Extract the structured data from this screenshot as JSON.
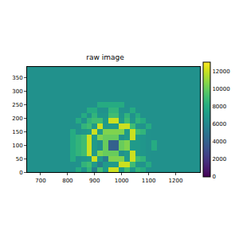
{
  "chart_data": {
    "type": "heatmap",
    "title": "raw image",
    "color": "viridis",
    "x": [
      660,
      680,
      700,
      720,
      740,
      760,
      780,
      800,
      820,
      840,
      860,
      880,
      900,
      920,
      940,
      960,
      980,
      1000,
      1020,
      1040,
      1060,
      1080,
      1100,
      1120,
      1140,
      1160,
      1180,
      1200,
      1220,
      1240,
      1260,
      1280
    ],
    "y": [
      10,
      30,
      50,
      70,
      90,
      110,
      130,
      150,
      170,
      190,
      210,
      230,
      250,
      270,
      290,
      310,
      330,
      350,
      370,
      390
    ],
    "z": [
      [
        6500,
        6500,
        6500,
        6500,
        6500,
        6500,
        6500,
        6500,
        6500,
        8000,
        6600,
        8500,
        5500,
        9000,
        7000,
        12000,
        12000,
        7000,
        9000,
        6800,
        8500,
        8000,
        6500,
        6500,
        6500,
        6500,
        6500,
        6500,
        6500,
        6500,
        6500,
        6500
      ],
      [
        6500,
        6500,
        6500,
        6500,
        6500,
        6500,
        6500,
        6500,
        6500,
        6600,
        8500,
        9000,
        7000,
        5500,
        7000,
        7000,
        7000,
        12000,
        12000,
        9000,
        6800,
        6600,
        8000,
        6500,
        6500,
        6500,
        6500,
        6500,
        6500,
        6500,
        6500,
        6500
      ],
      [
        6500,
        6500,
        6500,
        6500,
        6500,
        6500,
        6500,
        6500,
        8000,
        6600,
        6800,
        7000,
        12000,
        7000,
        5500,
        10500,
        10500,
        10500,
        7000,
        12000,
        9000,
        8500,
        6600,
        6500,
        6500,
        6500,
        6500,
        6500,
        6500,
        6500,
        6500,
        6500
      ],
      [
        6500,
        6500,
        6500,
        6500,
        6500,
        6500,
        6500,
        6500,
        8000,
        8500,
        9000,
        12000,
        7000,
        10500,
        10000,
        10000,
        10000,
        6500,
        7000,
        12000,
        7000,
        6800,
        6600,
        6500,
        6500,
        6500,
        6500,
        6500,
        6500,
        6500,
        6500,
        6500
      ],
      [
        6500,
        6500,
        6500,
        6500,
        6500,
        6500,
        6500,
        6500,
        8000,
        8500,
        9000,
        12000,
        7000,
        6500,
        10000,
        4000,
        4000,
        10000,
        10500,
        7000,
        7000,
        6800,
        6600,
        8000,
        6500,
        6500,
        6500,
        6500,
        6500,
        6500,
        6500,
        6500
      ],
      [
        6500,
        6500,
        6500,
        6500,
        6500,
        6500,
        6500,
        6500,
        8000,
        8500,
        9000,
        12000,
        7000,
        6500,
        10000,
        4000,
        4000,
        10000,
        10500,
        7000,
        7000,
        6800,
        6600,
        8000,
        6500,
        6500,
        6500,
        6500,
        6500,
        6500,
        6500,
        6500
      ],
      [
        6500,
        6500,
        6500,
        6500,
        6500,
        6500,
        6500,
        6500,
        8000,
        8500,
        9000,
        12000,
        7000,
        10500,
        10000,
        10000,
        10000,
        6500,
        7000,
        12000,
        7000,
        6800,
        6600,
        6500,
        6500,
        6500,
        6500,
        6500,
        6500,
        6500,
        6500,
        6500
      ],
      [
        6500,
        6500,
        6500,
        6500,
        6500,
        6500,
        6500,
        6500,
        8000,
        6600,
        6800,
        7000,
        12000,
        7000,
        10500,
        10500,
        10500,
        10500,
        7000,
        12000,
        9000,
        8500,
        6600,
        6500,
        6500,
        6500,
        6500,
        6500,
        6500,
        6500,
        6500,
        6500
      ],
      [
        6500,
        6500,
        6500,
        6500,
        6500,
        6500,
        6500,
        6500,
        6500,
        6600,
        8500,
        9000,
        7000,
        12000,
        7000,
        7000,
        7000,
        12000,
        12000,
        9000,
        6800,
        6600,
        8000,
        6500,
        6500,
        6500,
        6500,
        6500,
        6500,
        6500,
        6500,
        6500
      ],
      [
        6500,
        6500,
        6500,
        6500,
        6500,
        6500,
        6500,
        6500,
        6500,
        8000,
        6600,
        8500,
        9000,
        9000,
        7000,
        12000,
        12000,
        7000,
        9000,
        6800,
        8500,
        8000,
        6500,
        6500,
        6500,
        6500,
        6500,
        6500,
        6500,
        6500,
        6500,
        6500
      ],
      [
        6500,
        6500,
        6500,
        6500,
        6500,
        6500,
        6500,
        6500,
        6500,
        6500,
        8000,
        6600,
        8500,
        6800,
        6800,
        9000,
        9000,
        6800,
        8500,
        6600,
        8000,
        6500,
        6500,
        6500,
        6500,
        6500,
        6500,
        6500,
        6500,
        6500,
        6500,
        6500
      ],
      [
        6500,
        6500,
        6500,
        6500,
        6500,
        6500,
        6500,
        6500,
        6500,
        6500,
        6500,
        8000,
        8000,
        6600,
        6600,
        8500,
        8500,
        6600,
        6600,
        8000,
        6500,
        6500,
        6500,
        6500,
        6500,
        6500,
        6500,
        6500,
        6500,
        6500,
        6500,
        6500
      ],
      [
        6500,
        6500,
        6500,
        6500,
        6500,
        6500,
        6500,
        6500,
        6500,
        6500,
        6500,
        6500,
        6500,
        8000,
        8000,
        8000,
        8000,
        8000,
        6500,
        6500,
        6500,
        6500,
        6500,
        6500,
        6500,
        6500,
        6500,
        6500,
        6500,
        6500,
        6500,
        6500
      ],
      [
        6500,
        6500,
        6500,
        6500,
        6500,
        6500,
        6500,
        6500,
        6500,
        6500,
        6500,
        6500,
        6500,
        6500,
        6500,
        6500,
        6500,
        6500,
        6500,
        6500,
        6500,
        6500,
        6500,
        6500,
        6500,
        6500,
        6500,
        6500,
        6500,
        6500,
        6500,
        6500
      ],
      [
        6500,
        6500,
        6500,
        6500,
        6500,
        6500,
        6500,
        6500,
        6500,
        6500,
        6500,
        6500,
        6500,
        6500,
        6500,
        6500,
        6500,
        6500,
        6500,
        6500,
        6500,
        6500,
        6500,
        6500,
        6500,
        6500,
        6500,
        6500,
        6500,
        6500,
        6500,
        6500
      ],
      [
        6500,
        6500,
        6500,
        6500,
        6500,
        6500,
        6500,
        6500,
        6500,
        6500,
        6500,
        6500,
        6500,
        6500,
        6500,
        6500,
        6500,
        6500,
        6500,
        6500,
        6500,
        6500,
        6500,
        6500,
        6500,
        6500,
        6500,
        6500,
        6500,
        6500,
        6500,
        6500
      ],
      [
        6500,
        6500,
        6500,
        6500,
        6500,
        6500,
        6500,
        6500,
        6500,
        6500,
        6500,
        6500,
        6500,
        6500,
        6500,
        6500,
        6500,
        6500,
        6500,
        6500,
        6500,
        6500,
        6500,
        6500,
        6500,
        6500,
        6500,
        6500,
        6500,
        6500,
        6500,
        6500
      ],
      [
        6500,
        6500,
        6500,
        6500,
        6500,
        6500,
        6500,
        6500,
        6500,
        6500,
        6500,
        6500,
        6500,
        6500,
        6500,
        6500,
        6500,
        6500,
        6500,
        6500,
        6500,
        6500,
        6500,
        6500,
        6500,
        6500,
        6500,
        6500,
        6500,
        6500,
        6500,
        6500
      ],
      [
        6500,
        6500,
        6500,
        6500,
        6500,
        6500,
        6500,
        6500,
        6500,
        6500,
        6500,
        6500,
        6500,
        6500,
        6500,
        6500,
        6500,
        6500,
        6500,
        6500,
        6500,
        6500,
        6500,
        6500,
        6500,
        6500,
        6500,
        6500,
        6500,
        6500,
        6500,
        6500
      ],
      [
        6500,
        6500,
        6500,
        6500,
        6500,
        6500,
        6500,
        6500,
        6500,
        6500,
        6500,
        6500,
        6500,
        6500,
        6500,
        6500,
        6500,
        6500,
        6500,
        6500,
        6500,
        6500,
        6500,
        6500,
        6500,
        6500,
        6500,
        6500,
        6500,
        6500,
        6500,
        6500
      ]
    ],
    "xlim": [
      650,
      1290
    ],
    "ylim": [
      0,
      390
    ],
    "xticks": [
      700,
      800,
      900,
      1000,
      1100,
      1200
    ],
    "yticks": [
      0,
      50,
      100,
      150,
      200,
      250,
      300,
      350
    ],
    "colorbar_range": [
      0,
      13000
    ],
    "colorbar_ticks": [
      0,
      2000,
      4000,
      6000,
      8000,
      10000,
      12000
    ]
  }
}
